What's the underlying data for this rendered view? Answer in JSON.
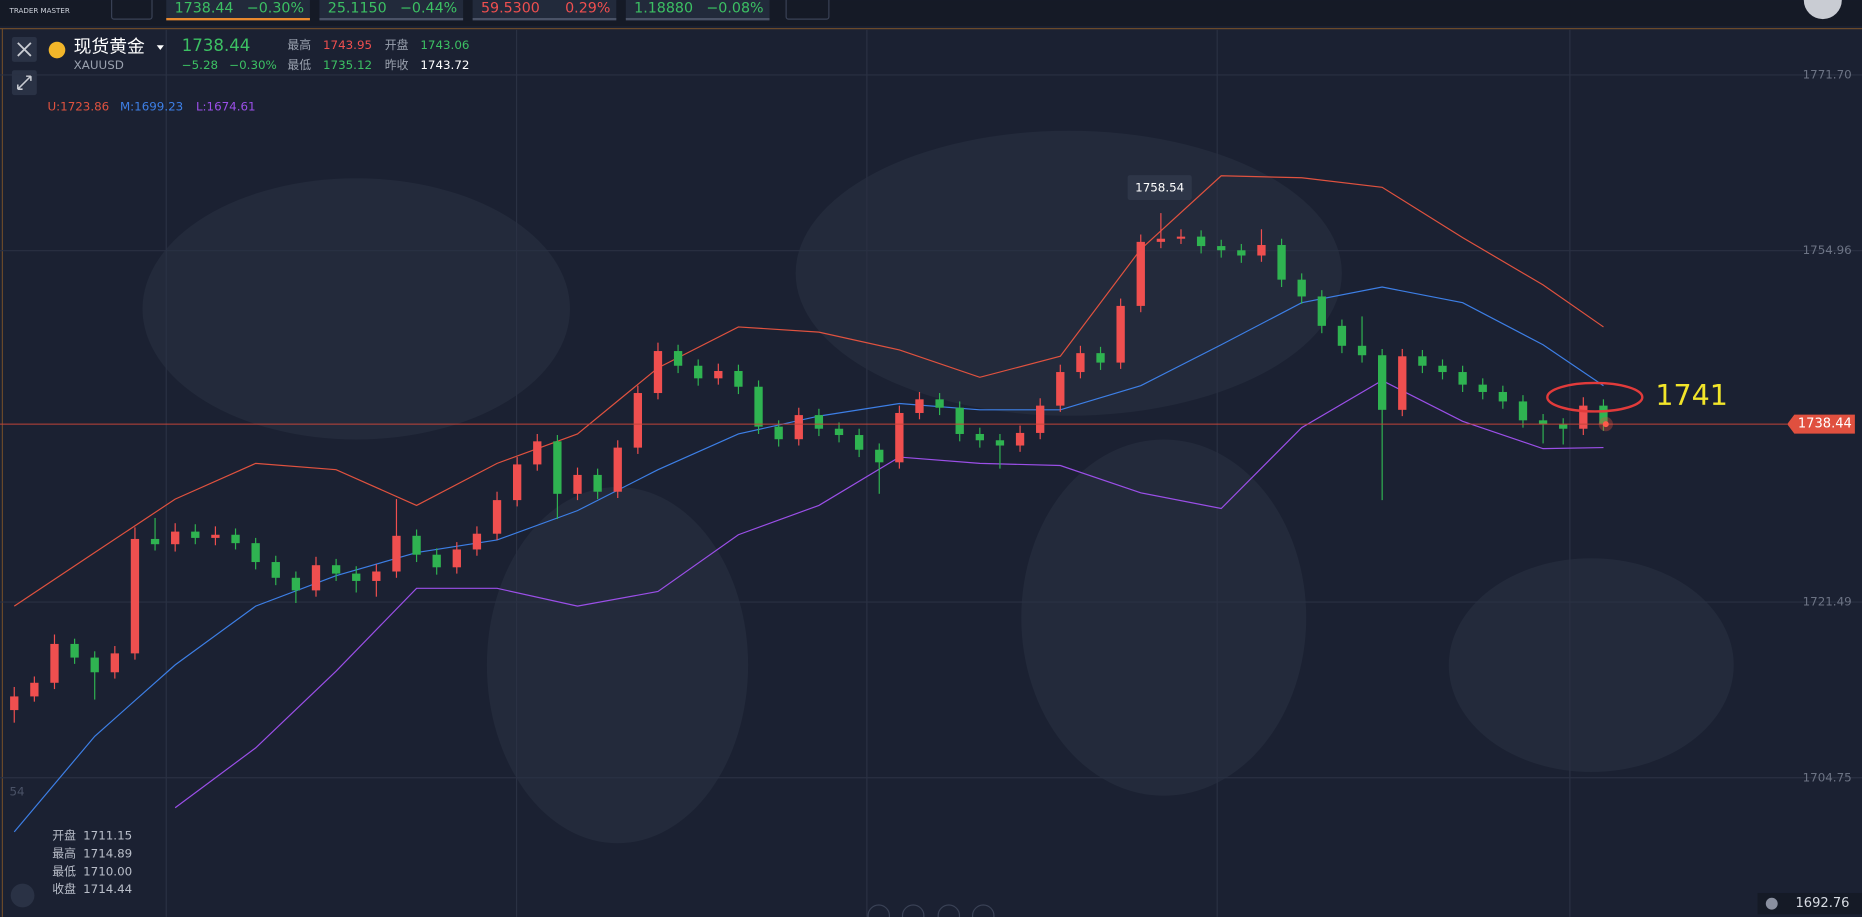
{
  "top_bar": {
    "logo": "TRADER MASTER",
    "tickers": [
      {
        "price": "1738.44",
        "change": "−0.30%"
      },
      {
        "price": "25.1150",
        "change": "−0.44%"
      },
      {
        "price": "59.5300",
        "change": "0.29%"
      },
      {
        "price": "1.18880",
        "change": "−0.08%"
      }
    ]
  },
  "quote": {
    "name": "现货黄金",
    "symbol": "XAUUSD",
    "price": "1738.44",
    "change": "−5.28",
    "change_pct": "−0.30%",
    "high_label": "最高",
    "high": "1743.95",
    "open_label": "开盘",
    "open": "1743.06",
    "low_label": "最低",
    "low": "1735.12",
    "prev_close_label": "昨收",
    "prev_close": "1743.72"
  },
  "tooltip": [
    {
      "label": "开盘",
      "value": "1711.15"
    },
    {
      "label": "最高",
      "value": "1714.89"
    },
    {
      "label": "最低",
      "value": "1710.00"
    },
    {
      "label": "收盘",
      "value": "1714.44"
    }
  ],
  "left_edge_label": "54",
  "chart_data": {
    "type": "candlestick",
    "up_color": "#ef4f4f",
    "down_color": "#2fb351",
    "candles": [
      [
        1711.2,
        1713.4,
        1710.0,
        1712.5
      ],
      [
        1712.5,
        1714.4,
        1712.0,
        1713.8
      ],
      [
        1713.8,
        1718.4,
        1713.2,
        1717.5
      ],
      [
        1717.5,
        1718.0,
        1715.6,
        1716.2
      ],
      [
        1716.2,
        1716.8,
        1712.2,
        1714.8
      ],
      [
        1714.8,
        1717.3,
        1714.2,
        1716.6
      ],
      [
        1716.6,
        1728.6,
        1716.0,
        1727.5
      ],
      [
        1727.5,
        1729.5,
        1726.4,
        1727.0
      ],
      [
        1727.0,
        1729.0,
        1726.3,
        1728.2
      ],
      [
        1728.2,
        1728.9,
        1727.0,
        1727.6
      ],
      [
        1727.6,
        1728.7,
        1726.9,
        1727.9
      ],
      [
        1727.9,
        1728.5,
        1726.5,
        1727.1
      ],
      [
        1727.1,
        1727.6,
        1724.6,
        1725.3
      ],
      [
        1725.3,
        1725.9,
        1723.1,
        1723.8
      ],
      [
        1723.8,
        1724.4,
        1721.4,
        1722.6
      ],
      [
        1722.6,
        1725.8,
        1722.0,
        1725.0
      ],
      [
        1725.0,
        1725.6,
        1723.5,
        1724.2
      ],
      [
        1724.2,
        1724.9,
        1722.4,
        1723.5
      ],
      [
        1723.5,
        1725.1,
        1722.0,
        1724.4
      ],
      [
        1724.4,
        1731.3,
        1723.8,
        1727.8
      ],
      [
        1727.8,
        1728.4,
        1725.3,
        1726.0
      ],
      [
        1726.0,
        1726.6,
        1724.1,
        1724.8
      ],
      [
        1724.8,
        1727.2,
        1724.2,
        1726.5
      ],
      [
        1726.5,
        1728.7,
        1725.9,
        1728.0
      ],
      [
        1728.0,
        1732.0,
        1727.4,
        1731.2
      ],
      [
        1731.2,
        1735.3,
        1730.6,
        1734.6
      ],
      [
        1734.6,
        1737.5,
        1734.0,
        1736.8
      ],
      [
        1736.8,
        1737.4,
        1729.4,
        1731.8
      ],
      [
        1731.8,
        1734.3,
        1731.2,
        1733.6
      ],
      [
        1733.6,
        1734.2,
        1731.3,
        1732.0
      ],
      [
        1732.0,
        1736.9,
        1731.4,
        1736.2
      ],
      [
        1736.2,
        1742.1,
        1735.6,
        1741.4
      ],
      [
        1741.4,
        1746.2,
        1740.8,
        1745.4
      ],
      [
        1745.4,
        1746.0,
        1743.3,
        1744.0
      ],
      [
        1744.0,
        1744.6,
        1742.1,
        1742.8
      ],
      [
        1742.8,
        1744.2,
        1742.2,
        1743.5
      ],
      [
        1743.5,
        1744.1,
        1741.3,
        1742.0
      ],
      [
        1742.0,
        1742.6,
        1737.5,
        1738.2
      ],
      [
        1738.2,
        1738.8,
        1736.3,
        1737.0
      ],
      [
        1737.0,
        1740.0,
        1736.4,
        1739.3
      ],
      [
        1739.3,
        1739.9,
        1737.3,
        1738.0
      ],
      [
        1738.0,
        1738.6,
        1736.7,
        1737.4
      ],
      [
        1737.4,
        1738.0,
        1735.3,
        1736.0
      ],
      [
        1736.0,
        1736.6,
        1731.8,
        1734.8
      ],
      [
        1734.8,
        1740.2,
        1734.2,
        1739.5
      ],
      [
        1739.5,
        1741.5,
        1738.9,
        1740.8
      ],
      [
        1740.8,
        1741.4,
        1739.3,
        1740.0
      ],
      [
        1740.0,
        1740.6,
        1736.8,
        1737.5
      ],
      [
        1737.5,
        1738.1,
        1736.2,
        1736.9
      ],
      [
        1736.9,
        1737.5,
        1734.2,
        1736.4
      ],
      [
        1736.4,
        1738.3,
        1735.8,
        1737.6
      ],
      [
        1737.6,
        1740.9,
        1737.0,
        1740.2
      ],
      [
        1740.2,
        1744.1,
        1739.6,
        1743.4
      ],
      [
        1743.4,
        1745.9,
        1742.8,
        1745.2
      ],
      [
        1745.2,
        1745.8,
        1743.6,
        1744.3
      ],
      [
        1744.3,
        1750.4,
        1743.7,
        1749.7
      ],
      [
        1749.7,
        1756.5,
        1749.1,
        1755.8
      ],
      [
        1755.8,
        1758.54,
        1755.2,
        1756.1
      ],
      [
        1756.1,
        1757.0,
        1755.6,
        1756.3
      ],
      [
        1756.3,
        1756.9,
        1754.7,
        1755.4
      ],
      [
        1755.4,
        1756.0,
        1754.3,
        1755.0
      ],
      [
        1755.0,
        1755.6,
        1753.8,
        1754.5
      ],
      [
        1754.5,
        1757.0,
        1753.9,
        1755.5
      ],
      [
        1755.5,
        1756.1,
        1751.5,
        1752.2
      ],
      [
        1752.2,
        1752.8,
        1749.9,
        1750.6
      ],
      [
        1750.6,
        1751.2,
        1747.1,
        1747.8
      ],
      [
        1747.8,
        1748.4,
        1745.2,
        1745.9
      ],
      [
        1745.9,
        1748.7,
        1744.3,
        1745.0
      ],
      [
        1745.0,
        1745.6,
        1731.2,
        1739.8
      ],
      [
        1739.8,
        1745.6,
        1739.2,
        1744.9
      ],
      [
        1744.9,
        1745.5,
        1743.3,
        1744.0
      ],
      [
        1744.0,
        1744.6,
        1742.7,
        1743.4
      ],
      [
        1743.4,
        1744.0,
        1741.5,
        1742.2
      ],
      [
        1742.2,
        1742.8,
        1740.8,
        1741.5
      ],
      [
        1741.5,
        1742.1,
        1739.9,
        1740.6
      ],
      [
        1740.6,
        1741.2,
        1738.1,
        1738.8
      ],
      [
        1738.8,
        1739.4,
        1736.6,
        1738.4
      ],
      [
        1738.4,
        1739.0,
        1736.5,
        1738.0
      ],
      [
        1738.0,
        1741.0,
        1737.4,
        1740.2
      ],
      [
        1740.2,
        1740.8,
        1737.8,
        1738.44
      ]
    ],
    "band_x": [
      0,
      4,
      8,
      12,
      16,
      20,
      24,
      28,
      32,
      36,
      40,
      44,
      48,
      52,
      56,
      60,
      64,
      68,
      72,
      76,
      79
    ],
    "series": [
      {
        "name": "U:1723.86",
        "color": "#e0523f",
        "values": [
          1721.1,
          1726.2,
          1731.3,
          1734.7,
          1734.1,
          1730.7,
          1734.7,
          1737.5,
          1743.8,
          1747.7,
          1747.2,
          1745.5,
          1742.9,
          1744.9,
          1755.1,
          1762.1,
          1761.9,
          1761.0,
          1756.2,
          1751.7,
          1747.7
        ]
      },
      {
        "name": "M:1699.23",
        "color": "#3d7fe6",
        "values": [
          1699.6,
          1708.7,
          1715.5,
          1721.1,
          1724.0,
          1726.2,
          1727.4,
          1730.2,
          1734.1,
          1737.5,
          1739.2,
          1740.4,
          1739.8,
          1739.8,
          1742.1,
          1746.0,
          1750.0,
          1751.5,
          1750.0,
          1746.0,
          1742.1
        ]
      },
      {
        "name": "L:1674.61",
        "color": "#9b4fe8",
        "values": [
          null,
          null,
          1701.9,
          1707.6,
          1714.9,
          1722.8,
          1722.8,
          1721.1,
          1722.5,
          1727.9,
          1730.7,
          1735.3,
          1734.7,
          1734.5,
          1731.9,
          1730.4,
          1738.1,
          1742.6,
          1738.7,
          1736.1,
          1736.2
        ]
      }
    ],
    "ylim": [
      1691.5,
      1776
    ],
    "yticks": [
      {
        "value": 1771.7,
        "label": "1771.70"
      },
      1754.96,
      1721.49,
      1704.75
    ],
    "grid": true,
    "last_price": 1738.44,
    "cursor_price": 1692.76,
    "peak_label": 1758.54,
    "target_label": 1741,
    "target_color": "#f2e52a"
  }
}
